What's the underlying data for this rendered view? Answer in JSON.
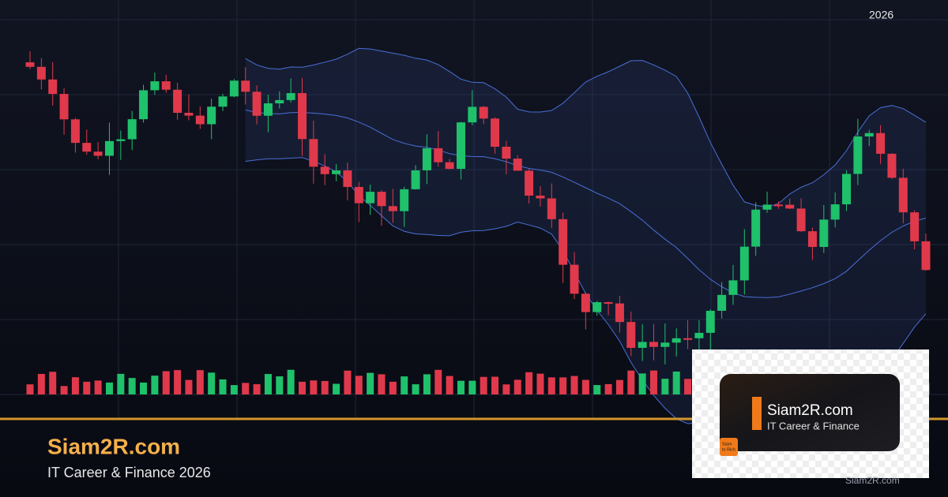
{
  "header": {
    "year": "2026"
  },
  "brand": {
    "title": "Siam2R.com",
    "tagline": "IT Career & Finance 2026"
  },
  "logo": {
    "title": "Siam2R.com",
    "tagline": "IT Career & Finance",
    "icon_lines": [
      "Siam",
      "to Rich"
    ]
  },
  "watermark": "Siam2R.com"
}
